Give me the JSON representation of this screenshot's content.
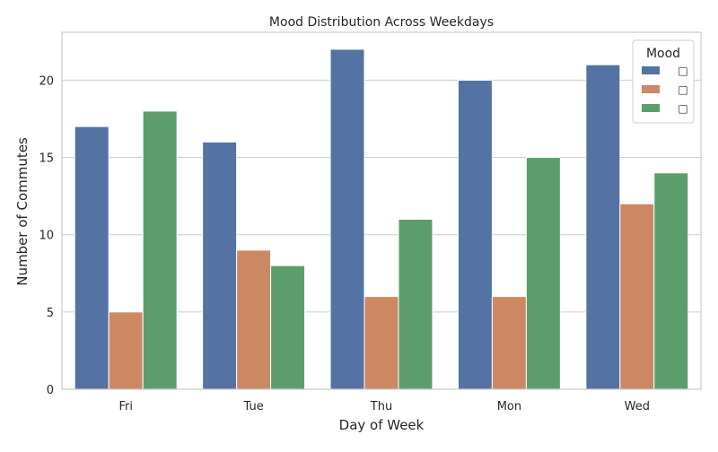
{
  "chart_data": {
    "type": "bar",
    "title": "Mood Distribution Across Weekdays",
    "xlabel": "Day of Week",
    "ylabel": "Number of Commutes",
    "categories": [
      "Fri",
      "Tue",
      "Thu",
      "Mon",
      "Wed"
    ],
    "series": [
      {
        "name": "□",
        "color": "#5572a4",
        "values": [
          17,
          16,
          22,
          20,
          21
        ]
      },
      {
        "name": "□",
        "color": "#cc8862",
        "values": [
          5,
          9,
          6,
          6,
          12
        ]
      },
      {
        "name": "□",
        "color": "#5b9e6b",
        "values": [
          18,
          8,
          11,
          15,
          14
        ]
      }
    ],
    "ylim": [
      0,
      23.1
    ],
    "yticks": [
      0,
      5,
      10,
      15,
      20
    ],
    "grid": true,
    "legend": {
      "title": "Mood",
      "placement": "top-right"
    }
  }
}
